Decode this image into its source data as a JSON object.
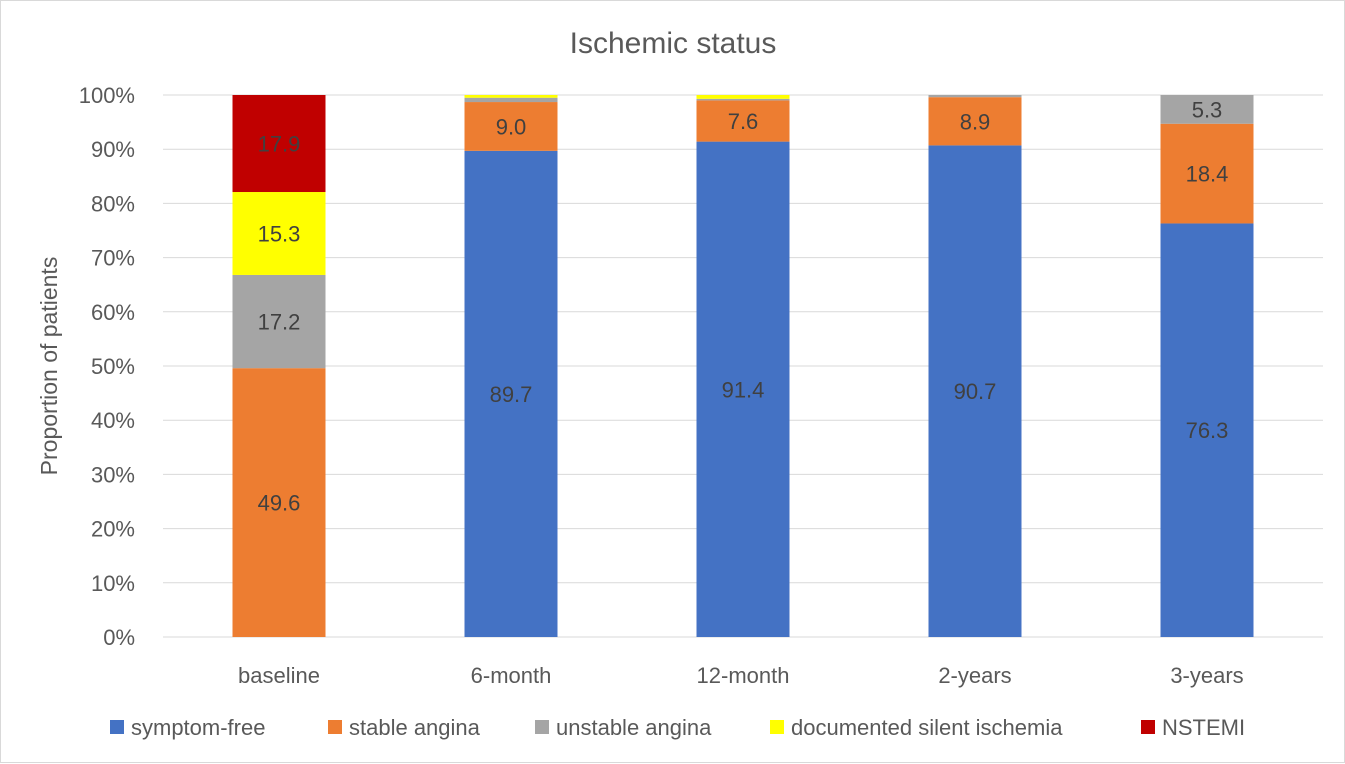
{
  "chart_data": {
    "type": "bar",
    "stacked": true,
    "title": "Ischemic status",
    "xlabel": "",
    "ylabel": "Proportion of patients",
    "ylim": [
      0,
      100
    ],
    "y_ticks": [
      "0%",
      "10%",
      "20%",
      "30%",
      "40%",
      "50%",
      "60%",
      "70%",
      "80%",
      "90%",
      "100%"
    ],
    "grid": true,
    "legend_position": "bottom",
    "categories": [
      "baseline",
      "6-month",
      "12-month",
      "2-years",
      "3-years"
    ],
    "series": [
      {
        "name": "symptom-free",
        "color": "#4472C4",
        "values": [
          0,
          89.7,
          91.4,
          90.7,
          76.3
        ],
        "labels": [
          "",
          "89.7",
          "91.4",
          "90.7",
          "76.3"
        ]
      },
      {
        "name": "stable angina",
        "color": "#ED7D31",
        "values": [
          49.6,
          9.0,
          7.6,
          8.9,
          18.4
        ],
        "labels": [
          "49.6",
          "9.0",
          "7.6",
          "8.9",
          "18.4"
        ]
      },
      {
        "name": "unstable angina",
        "color": "#A5A5A5",
        "values": [
          17.2,
          0.8,
          0.3,
          0.4,
          5.3
        ],
        "labels": [
          "17.2",
          "",
          "",
          "",
          "5.3"
        ]
      },
      {
        "name": "documented silent ischemia",
        "color": "#FFFF00",
        "values": [
          15.3,
          0.5,
          0.7,
          0.0,
          0.0
        ],
        "labels": [
          "15.3",
          "",
          "",
          "",
          ""
        ]
      },
      {
        "name": "NSTEMI",
        "color": "#C00000",
        "values": [
          17.9,
          0,
          0,
          0,
          0
        ],
        "labels": [
          "17.9",
          "",
          "",
          "",
          ""
        ]
      }
    ]
  }
}
